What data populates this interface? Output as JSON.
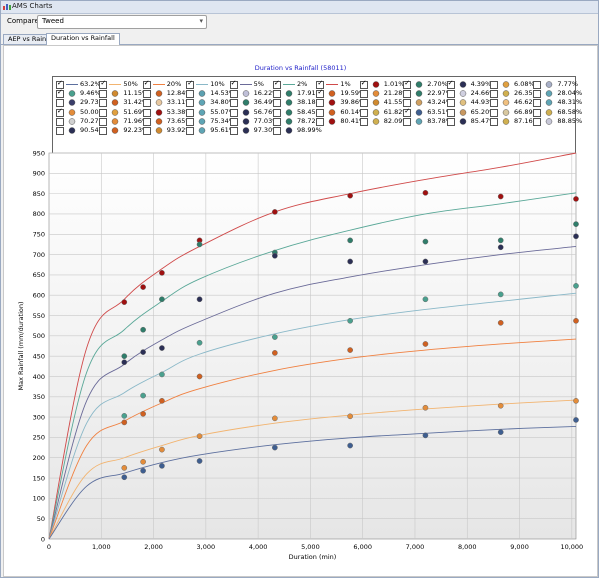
{
  "window": {
    "title": "AMS Charts"
  },
  "toolbar": {
    "compare_label": "Compare to:",
    "compare_value": "Tweed"
  },
  "tabs": [
    {
      "label": "AEP vs Rainfall"
    },
    {
      "label": "Duration vs Rainfall"
    }
  ],
  "colors": {
    "1.01%": "#a01010",
    "2.70%": "#2f7d6a",
    "4.39%": "#2b2f55",
    "9.46%": "#4aa08e",
    "11.15%": "#d06020",
    "12.84%": "#d06020",
    "13.43%": "#4a4f7a",
    "21.28%": "#e38c3a",
    "35%": "#5fa5b5",
    "63.2%": "#3e5e90"
  },
  "chart_data": {
    "type": "scatter",
    "title": "Duration vs Rainfall (58011)",
    "xlabel": "Duration (min)",
    "ylabel": "Max Rainfall (mm/duration)",
    "xlim": [
      0,
      10080
    ],
    "ylim": [
      0,
      950
    ],
    "xticks": [
      "0",
      "1,000",
      "2,000",
      "3,000",
      "4,000",
      "5,000",
      "6,000",
      "7,000",
      "8,000",
      "9,000",
      "10,000"
    ],
    "yticks": [
      "0",
      "50",
      "100",
      "150",
      "200",
      "250",
      "300",
      "350",
      "400",
      "450",
      "500",
      "550",
      "600",
      "650",
      "700",
      "750",
      "800",
      "850",
      "900",
      "950"
    ],
    "grid": true,
    "legend_position": "top",
    "legend": [
      {
        "label": "63.2%",
        "kind": "line",
        "checked": true,
        "color": "#5c6f9e"
      },
      {
        "label": "50%",
        "kind": "line",
        "checked": true,
        "color": "#f2b470"
      },
      {
        "label": "20%",
        "kind": "line",
        "checked": true,
        "color": "#f08040"
      },
      {
        "label": "10%",
        "kind": "line",
        "checked": true,
        "color": "#8ab8c8"
      },
      {
        "label": "5%",
        "kind": "line",
        "checked": true,
        "color": "#6a6a98"
      },
      {
        "label": "2%",
        "kind": "line",
        "checked": true,
        "color": "#5aa898"
      },
      {
        "label": "1%",
        "kind": "line",
        "checked": true,
        "color": "#d04a4a"
      },
      {
        "label": "1.01%",
        "kind": "dot",
        "checked": true,
        "color": "#a01010"
      },
      {
        "label": "2.70%",
        "kind": "dot",
        "checked": true,
        "color": "#2f7d6a"
      },
      {
        "label": "4.39%",
        "kind": "dot",
        "checked": true,
        "color": "#2b2f55"
      },
      {
        "label": "6.08%",
        "kind": "dot",
        "checked": false,
        "color": "#e0a040"
      },
      {
        "label": "7.77%",
        "kind": "dot",
        "checked": false,
        "color": "#a8b0c8"
      },
      {
        "label": "9.46%",
        "kind": "dot",
        "checked": true,
        "color": "#4aa08e"
      },
      {
        "label": "11.15%",
        "kind": "dot",
        "checked": false,
        "color": "#d08a30"
      },
      {
        "label": "12.84%",
        "kind": "dot",
        "checked": false,
        "color": "#d06020"
      },
      {
        "label": "14.53%",
        "kind": "dot",
        "checked": false,
        "color": "#5ca0b0"
      },
      {
        "label": "16.22%",
        "kind": "dot",
        "checked": false,
        "color": "#c0c0d8"
      },
      {
        "label": "17.91%",
        "kind": "dot",
        "checked": false,
        "color": "#2f7d6a"
      },
      {
        "label": "19.59%",
        "kind": "dot",
        "checked": true,
        "color": "#d06020"
      },
      {
        "label": "21.28%",
        "kind": "dot",
        "checked": false,
        "color": "#e38c3a"
      },
      {
        "label": "22.97%",
        "kind": "dot",
        "checked": false,
        "color": "#2f7d6a"
      },
      {
        "label": "24.66%",
        "kind": "dot",
        "checked": false,
        "color": "#d0d0e0"
      },
      {
        "label": "26.35%",
        "kind": "dot",
        "checked": false,
        "color": "#d0b050"
      },
      {
        "label": "28.04%",
        "kind": "dot",
        "checked": false,
        "color": "#5fa5b5"
      },
      {
        "label": "29.73%",
        "kind": "dot",
        "checked": false,
        "color": "#3a3e6a"
      },
      {
        "label": "31.42%",
        "kind": "dot",
        "checked": false,
        "color": "#d06020"
      },
      {
        "label": "33.11%",
        "kind": "dot",
        "checked": false,
        "color": "#e8c8a0"
      },
      {
        "label": "34.80%",
        "kind": "dot",
        "checked": false,
        "color": "#5fa5b5"
      },
      {
        "label": "36.49%",
        "kind": "dot",
        "checked": false,
        "color": "#2f7d6a"
      },
      {
        "label": "38.18%",
        "kind": "dot",
        "checked": false,
        "color": "#2f7d6a"
      },
      {
        "label": "39.86%",
        "kind": "dot",
        "checked": false,
        "color": "#a01010"
      },
      {
        "label": "41.55%",
        "kind": "dot",
        "checked": false,
        "color": "#d08a30"
      },
      {
        "label": "43.24%",
        "kind": "dot",
        "checked": false,
        "color": "#d0a060"
      },
      {
        "label": "44.93%",
        "kind": "dot",
        "checked": false,
        "color": "#e0c080"
      },
      {
        "label": "46.62%",
        "kind": "dot",
        "checked": false,
        "color": "#f0c080"
      },
      {
        "label": "48.31%",
        "kind": "dot",
        "checked": false,
        "color": "#5fa5b5"
      },
      {
        "label": "50.00%",
        "kind": "dot",
        "checked": true,
        "color": "#e38c3a"
      },
      {
        "label": "51.69%",
        "kind": "dot",
        "checked": false,
        "color": "#e0a040"
      },
      {
        "label": "53.38%",
        "kind": "dot",
        "checked": false,
        "color": "#a01010"
      },
      {
        "label": "55.07%",
        "kind": "dot",
        "checked": false,
        "color": "#5fa5b5"
      },
      {
        "label": "56.76%",
        "kind": "dot",
        "checked": false,
        "color": "#2b2f55"
      },
      {
        "label": "58.45%",
        "kind": "dot",
        "checked": false,
        "color": "#2f7d6a"
      },
      {
        "label": "60.14%",
        "kind": "dot",
        "checked": false,
        "color": "#d06020"
      },
      {
        "label": "61.82%",
        "kind": "dot",
        "checked": false,
        "color": "#d0b050"
      },
      {
        "label": "63.51%",
        "kind": "dot",
        "checked": true,
        "color": "#3e5e90"
      },
      {
        "label": "65.20%",
        "kind": "dot",
        "checked": false,
        "color": "#c89860"
      },
      {
        "label": "66.89%",
        "kind": "dot",
        "checked": false,
        "color": "#d8c8a0"
      },
      {
        "label": "68.58%",
        "kind": "dot",
        "checked": false,
        "color": "#d0b050"
      },
      {
        "label": "70.27%",
        "kind": "dot",
        "checked": false,
        "color": "#d0d0d0"
      },
      {
        "label": "71.96%",
        "kind": "dot",
        "checked": false,
        "color": "#e38c3a"
      },
      {
        "label": "73.65%",
        "kind": "dot",
        "checked": false,
        "color": "#d06020"
      },
      {
        "label": "75.34%",
        "kind": "dot",
        "checked": false,
        "color": "#5fa5b5"
      },
      {
        "label": "77.03%",
        "kind": "dot",
        "checked": false,
        "color": "#2b2f55"
      },
      {
        "label": "78.72%",
        "kind": "dot",
        "checked": false,
        "color": "#2f7d6a"
      },
      {
        "label": "80.41%",
        "kind": "dot",
        "checked": false,
        "color": "#a01010"
      },
      {
        "label": "82.09%",
        "kind": "dot",
        "checked": false,
        "color": "#d0b050"
      },
      {
        "label": "83.78%",
        "kind": "dot",
        "checked": false,
        "color": "#5fa5b5"
      },
      {
        "label": "85.47%",
        "kind": "dot",
        "checked": false,
        "color": "#2b2f55"
      },
      {
        "label": "87.16%",
        "kind": "dot",
        "checked": false,
        "color": "#d0b050"
      },
      {
        "label": "88.85%",
        "kind": "dot",
        "checked": false,
        "color": "#c8c8d8"
      },
      {
        "label": "90.54%",
        "kind": "dot",
        "checked": false,
        "color": "#2b2f55"
      },
      {
        "label": "92.23%",
        "kind": "dot",
        "checked": false,
        "color": "#d06020"
      },
      {
        "label": "93.92%",
        "kind": "dot",
        "checked": false,
        "color": "#d08a30"
      },
      {
        "label": "95.61%",
        "kind": "dot",
        "checked": false,
        "color": "#5fa5b5"
      },
      {
        "label": "97.30%",
        "kind": "dot",
        "checked": false,
        "color": "#2b2f55"
      },
      {
        "label": "98.99%",
        "kind": "dot",
        "checked": false,
        "color": "#2b2f55"
      }
    ],
    "curves": [
      {
        "name": "1%",
        "color": "#d04a4a",
        "points": [
          [
            0,
            0
          ],
          [
            720,
            470
          ],
          [
            1440,
            590
          ],
          [
            2160,
            665
          ],
          [
            2880,
            720
          ],
          [
            4320,
            805
          ],
          [
            5760,
            850
          ],
          [
            7200,
            885
          ],
          [
            8640,
            915
          ],
          [
            10080,
            950
          ]
        ]
      },
      {
        "name": "2%",
        "color": "#5aa898",
        "points": [
          [
            0,
            0
          ],
          [
            720,
            410
          ],
          [
            1440,
            515
          ],
          [
            2160,
            585
          ],
          [
            2880,
            640
          ],
          [
            4320,
            710
          ],
          [
            5760,
            760
          ],
          [
            7200,
            800
          ],
          [
            8640,
            825
          ],
          [
            10080,
            852
          ]
        ]
      },
      {
        "name": "5%",
        "color": "#6a6a98",
        "points": [
          [
            0,
            0
          ],
          [
            720,
            340
          ],
          [
            1440,
            430
          ],
          [
            2160,
            490
          ],
          [
            2880,
            535
          ],
          [
            4320,
            605
          ],
          [
            5760,
            645
          ],
          [
            7200,
            675
          ],
          [
            8640,
            700
          ],
          [
            10080,
            720
          ]
        ]
      },
      {
        "name": "10%",
        "color": "#8ab8c8",
        "points": [
          [
            0,
            0
          ],
          [
            720,
            285
          ],
          [
            1440,
            360
          ],
          [
            2160,
            410
          ],
          [
            2880,
            455
          ],
          [
            4320,
            505
          ],
          [
            5760,
            540
          ],
          [
            7200,
            565
          ],
          [
            8640,
            585
          ],
          [
            10080,
            605
          ]
        ]
      },
      {
        "name": "20%",
        "color": "#f08040",
        "points": [
          [
            0,
            0
          ],
          [
            720,
            230
          ],
          [
            1440,
            290
          ],
          [
            2160,
            335
          ],
          [
            2880,
            370
          ],
          [
            4320,
            415
          ],
          [
            5760,
            445
          ],
          [
            7200,
            465
          ],
          [
            8640,
            480
          ],
          [
            10080,
            492
          ]
        ]
      },
      {
        "name": "50%",
        "color": "#f2b470",
        "points": [
          [
            0,
            0
          ],
          [
            720,
            160
          ],
          [
            1440,
            200
          ],
          [
            2160,
            230
          ],
          [
            2880,
            255
          ],
          [
            4320,
            285
          ],
          [
            5760,
            305
          ],
          [
            7200,
            320
          ],
          [
            8640,
            332
          ],
          [
            10080,
            342
          ]
        ]
      },
      {
        "name": "63.2%",
        "color": "#5c6f9e",
        "points": [
          [
            0,
            0
          ],
          [
            720,
            130
          ],
          [
            1440,
            162
          ],
          [
            2160,
            188
          ],
          [
            2880,
            207
          ],
          [
            4320,
            232
          ],
          [
            5760,
            249
          ],
          [
            7200,
            260
          ],
          [
            8640,
            270
          ],
          [
            10080,
            277
          ]
        ]
      }
    ],
    "series": [
      {
        "name": "1.01%",
        "color": "#a01010",
        "points": [
          [
            1440,
            583
          ],
          [
            1800,
            620
          ],
          [
            2160,
            655
          ],
          [
            2880,
            735
          ],
          [
            4320,
            805
          ],
          [
            5760,
            845
          ],
          [
            7200,
            852
          ],
          [
            8640,
            843
          ],
          [
            10080,
            837
          ]
        ]
      },
      {
        "name": "2.70%",
        "color": "#2f7d6a",
        "points": [
          [
            1440,
            450
          ],
          [
            1800,
            515
          ],
          [
            2160,
            590
          ],
          [
            2880,
            725
          ],
          [
            4320,
            705
          ],
          [
            5760,
            735
          ],
          [
            7200,
            732
          ],
          [
            8640,
            735
          ],
          [
            10080,
            775
          ]
        ]
      },
      {
        "name": "4.39%",
        "color": "#2b2f55",
        "points": [
          [
            1440,
            435
          ],
          [
            1800,
            460
          ],
          [
            2160,
            470
          ],
          [
            2880,
            590
          ],
          [
            4320,
            697
          ],
          [
            5760,
            683
          ],
          [
            7200,
            683
          ],
          [
            8640,
            718
          ],
          [
            10080,
            745
          ]
        ]
      },
      {
        "name": "9.46%",
        "color": "#4aa08e",
        "points": [
          [
            1440,
            303
          ],
          [
            1800,
            353
          ],
          [
            2160,
            405
          ],
          [
            2880,
            483
          ],
          [
            4320,
            497
          ],
          [
            5760,
            537
          ],
          [
            7200,
            590
          ],
          [
            8640,
            602
          ],
          [
            10080,
            623
          ]
        ]
      },
      {
        "name": "19.59%",
        "color": "#d06020",
        "points": [
          [
            1440,
            287
          ],
          [
            1800,
            308
          ],
          [
            2160,
            340
          ],
          [
            2880,
            400
          ],
          [
            4320,
            458
          ],
          [
            5760,
            465
          ],
          [
            7200,
            480
          ],
          [
            8640,
            532
          ],
          [
            10080,
            537
          ]
        ]
      },
      {
        "name": "50.00%",
        "color": "#e38c3a",
        "points": [
          [
            1440,
            175
          ],
          [
            1800,
            190
          ],
          [
            2160,
            220
          ],
          [
            2880,
            253
          ],
          [
            4320,
            297
          ],
          [
            5760,
            302
          ],
          [
            7200,
            323
          ],
          [
            8640,
            328
          ],
          [
            10080,
            340
          ]
        ]
      },
      {
        "name": "63.51%",
        "color": "#3e5e90",
        "points": [
          [
            1440,
            152
          ],
          [
            1800,
            168
          ],
          [
            2160,
            180
          ],
          [
            2880,
            192
          ],
          [
            4320,
            225
          ],
          [
            5760,
            230
          ],
          [
            7200,
            255
          ],
          [
            8640,
            263
          ],
          [
            10080,
            293
          ]
        ]
      }
    ]
  }
}
